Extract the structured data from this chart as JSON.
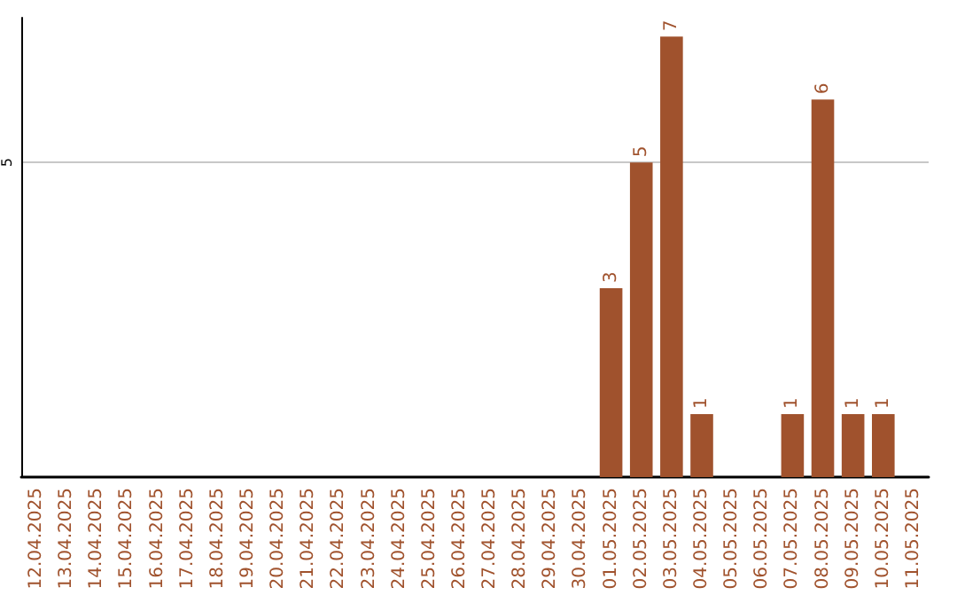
{
  "chart_data": {
    "type": "bar",
    "categories": [
      "12.04.2025",
      "13.04.2025",
      "14.04.2025",
      "15.04.2025",
      "16.04.2025",
      "17.04.2025",
      "18.04.2025",
      "19.04.2025",
      "20.04.2025",
      "21.04.2025",
      "22.04.2025",
      "23.04.2025",
      "24.04.2025",
      "25.04.2025",
      "26.04.2025",
      "27.04.2025",
      "28.04.2025",
      "29.04.2025",
      "30.04.2025",
      "01.05.2025",
      "02.05.2025",
      "03.05.2025",
      "04.05.2025",
      "05.05.2025",
      "06.05.2025",
      "07.05.2025",
      "08.05.2025",
      "09.05.2025",
      "10.05.2025",
      "11.05.2025"
    ],
    "values": [
      null,
      null,
      null,
      null,
      null,
      null,
      null,
      null,
      null,
      null,
      null,
      null,
      null,
      null,
      null,
      null,
      null,
      null,
      null,
      3,
      5,
      7,
      1,
      null,
      null,
      1,
      6,
      1,
      1,
      null
    ],
    "color": "#a0522d",
    "ylim": [
      0,
      7.3
    ],
    "yticks": [
      5
    ],
    "grid": "y",
    "data_labels": true
  }
}
